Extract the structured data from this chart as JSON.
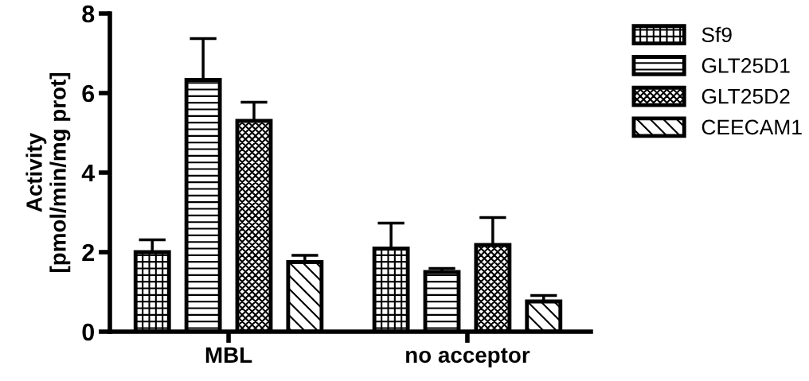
{
  "chart_data": {
    "type": "bar",
    "ylabel": "Activity\n[pmol/min/mg prot]",
    "categories": [
      "MBL",
      "no acceptor"
    ],
    "series": [
      {
        "name": "Sf9",
        "color": "#000000",
        "values": [
          2.0,
          2.09
        ],
        "errors": [
          [
            2.0,
            2.31
          ],
          [
            2.09,
            2.73
          ]
        ]
      },
      {
        "name": "GLT25D1",
        "color": "#000000",
        "values": [
          6.33,
          1.5
        ],
        "errors": [
          [
            6.33,
            7.37
          ],
          [
            1.5,
            1.59
          ]
        ]
      },
      {
        "name": "GLT25D2",
        "color": "#000000",
        "values": [
          5.3,
          2.18
        ],
        "errors": [
          [
            5.3,
            5.77
          ],
          [
            2.18,
            2.87
          ]
        ]
      },
      {
        "name": "CEECAM1",
        "color": "#000000",
        "values": [
          1.75,
          0.76
        ],
        "errors": [
          [
            1.75,
            1.92
          ],
          [
            0.76,
            0.91
          ]
        ]
      }
    ],
    "ylim": [
      0,
      8
    ],
    "yticks": [
      0,
      2,
      4,
      6,
      8
    ],
    "grid": false,
    "legend": "top right"
  }
}
